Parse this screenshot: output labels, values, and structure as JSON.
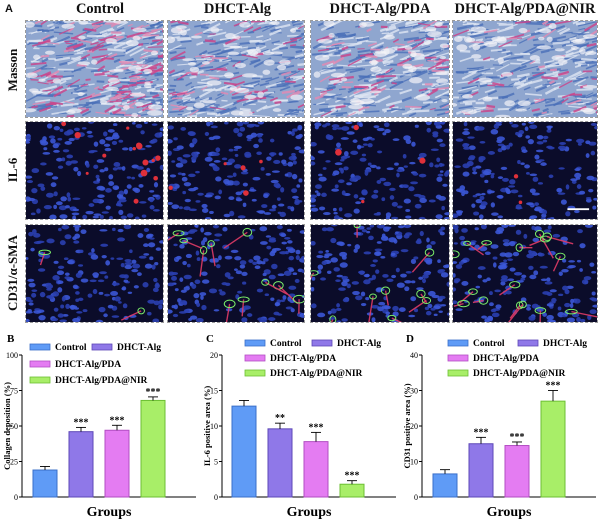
{
  "panel_a": {
    "letter": "A",
    "columns": [
      "Control",
      "DHCT-Alg",
      "DHCT-Alg/PDA",
      "DHCT-Alg/PDA@NIR"
    ],
    "rows": [
      "Masson",
      "IL-6",
      "CD31/α-SMA"
    ]
  },
  "colors": {
    "series": [
      "#5f9bf6",
      "#8f78e8",
      "#e47cf2",
      "#a8ee68"
    ],
    "series_border": [
      "#3a6fc9",
      "#5d47b7",
      "#b24ec3",
      "#6cbf33"
    ],
    "masson_bg": "#8fa6cf",
    "fluor_bg": "#0b0c2a"
  },
  "chart_data": [
    {
      "panel": "B",
      "type": "bar",
      "categories": [
        "Control",
        "DHCT-Alg",
        "DHCT-Alg/PDA",
        "DHCT-Alg/PDA@NIR"
      ],
      "values": [
        19,
        46,
        47,
        68
      ],
      "errors": [
        2.5,
        3,
        3.5,
        2.5
      ],
      "significance": [
        "",
        "***",
        "***",
        "***"
      ],
      "ylabel": "Collagen deposition (%)",
      "xlabel": "Groups",
      "ylim": [
        0,
        100
      ],
      "yticks": [
        "0",
        "25",
        "50",
        "75",
        "100"
      ],
      "legend": [
        "Control",
        "DHCT-Alg",
        "DHCT-Alg/PDA",
        "DHCT-Alg/PDA@NIR"
      ]
    },
    {
      "panel": "C",
      "type": "bar",
      "categories": [
        "Control",
        "DHCT-Alg",
        "DHCT-Alg/PDA",
        "DHCT-Alg/PDA@NIR"
      ],
      "values": [
        12.8,
        9.6,
        7.8,
        1.8
      ],
      "errors": [
        0.8,
        0.8,
        1.3,
        0.5
      ],
      "significance": [
        "",
        "**",
        "***",
        "***"
      ],
      "ylabel": "IL-6 positive area (%)",
      "xlabel": "Groups",
      "ylim": [
        0,
        20
      ],
      "yticks": [
        "0",
        "5",
        "10",
        "15",
        "20"
      ],
      "legend": [
        "Control",
        "DHCT-Alg",
        "DHCT-Alg/PDA",
        "DHCT-Alg/PDA@NIR"
      ]
    },
    {
      "panel": "D",
      "type": "bar",
      "categories": [
        "Control",
        "DHCT-Alg",
        "DHCT-Alg/PDA",
        "DHCT-Alg/PDA@NIR"
      ],
      "values": [
        6.5,
        15,
        14.5,
        27
      ],
      "errors": [
        1.2,
        1.8,
        1,
        3
      ],
      "significance": [
        "",
        "***",
        "***",
        "***"
      ],
      "ylabel": "CD31 positive area (%)",
      "xlabel": "Groups",
      "ylim": [
        0,
        40
      ],
      "yticks": [
        "0",
        "10",
        "20",
        "30",
        "40"
      ],
      "legend": [
        "Control",
        "DHCT-Alg",
        "DHCT-Alg/PDA",
        "DHCT-Alg/PDA@NIR"
      ]
    }
  ]
}
